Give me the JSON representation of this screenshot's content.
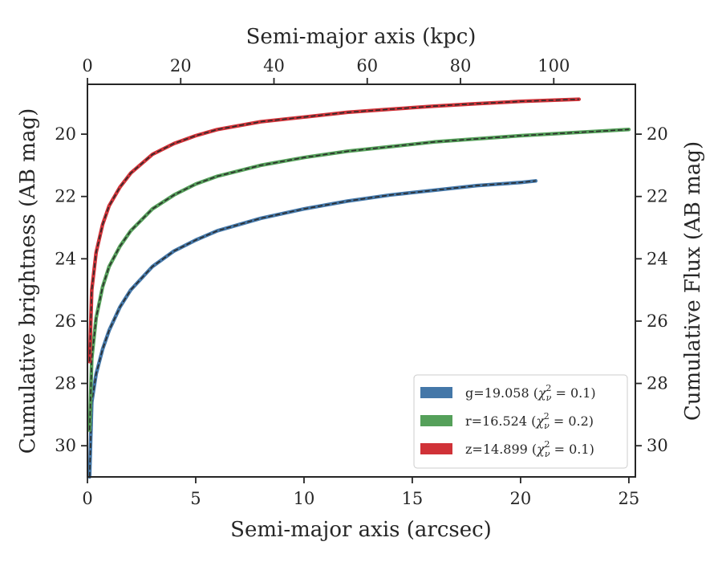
{
  "chart_data": {
    "type": "line",
    "xlabel": "Semi-major axis (arcsec)",
    "ylabel": "Cumulative brightness (AB mag)",
    "x2label": "Semi-major axis (kpc)",
    "y2label": "Cumulative Flux (AB mag)",
    "xlim": [
      0,
      25.3
    ],
    "ylim": [
      31,
      18.4
    ],
    "x2lim": [
      0,
      117.5
    ],
    "y2lim": [
      31,
      18.4
    ],
    "y_inverted": true,
    "xticks": [
      0,
      5,
      10,
      15,
      20,
      25
    ],
    "yticks": [
      20,
      22,
      24,
      26,
      28,
      30
    ],
    "x2ticks": [
      0,
      20,
      40,
      60,
      80,
      100
    ],
    "y2ticks": [
      20,
      22,
      24,
      26,
      28,
      30
    ],
    "grid": false,
    "legend_position": "lower-right",
    "series": [
      {
        "name_prefix": "g=19.058 (",
        "name_chi": "χ",
        "name_sub": "ν",
        "name_sup": "2",
        "name_suffix": " = 0.1)",
        "color": "#4477a8",
        "x": [
          0.1,
          0.2,
          0.4,
          0.7,
          1.0,
          1.5,
          2.0,
          3.0,
          4.0,
          5.0,
          6.0,
          8.0,
          10.0,
          12.0,
          14.0,
          16.0,
          18.0,
          20.0,
          20.7
        ],
        "y": [
          31.0,
          28.6,
          27.7,
          26.9,
          26.3,
          25.55,
          25.0,
          24.25,
          23.75,
          23.4,
          23.1,
          22.7,
          22.4,
          22.15,
          21.95,
          21.8,
          21.65,
          21.55,
          21.5
        ]
      },
      {
        "name_prefix": "r=16.524 (",
        "name_chi": "χ",
        "name_sub": "ν",
        "name_sup": "2",
        "name_suffix": " = 0.2)",
        "color": "#55a05a",
        "x": [
          0.1,
          0.2,
          0.4,
          0.7,
          1.0,
          1.5,
          2.0,
          3.0,
          4.0,
          5.0,
          6.0,
          8.0,
          10.0,
          12.0,
          14.0,
          16.0,
          18.0,
          20.0,
          22.0,
          25.0
        ],
        "y": [
          29.5,
          27.2,
          25.9,
          24.9,
          24.25,
          23.6,
          23.1,
          22.4,
          21.95,
          21.6,
          21.35,
          21.0,
          20.75,
          20.55,
          20.4,
          20.25,
          20.15,
          20.05,
          19.97,
          19.85
        ]
      },
      {
        "name_prefix": "z=14.899 (",
        "name_chi": "χ",
        "name_sub": "ν",
        "name_sup": "2",
        "name_suffix": " = 0.1)",
        "color": "#d03238",
        "x": [
          0.1,
          0.2,
          0.4,
          0.7,
          1.0,
          1.5,
          2.0,
          3.0,
          4.0,
          5.0,
          6.0,
          8.0,
          10.0,
          12.0,
          14.0,
          16.0,
          18.0,
          20.0,
          22.7
        ],
        "y": [
          27.3,
          25.0,
          23.8,
          22.9,
          22.3,
          21.7,
          21.25,
          20.65,
          20.3,
          20.05,
          19.85,
          19.6,
          19.45,
          19.3,
          19.2,
          19.1,
          19.02,
          18.95,
          18.88
        ]
      }
    ]
  }
}
